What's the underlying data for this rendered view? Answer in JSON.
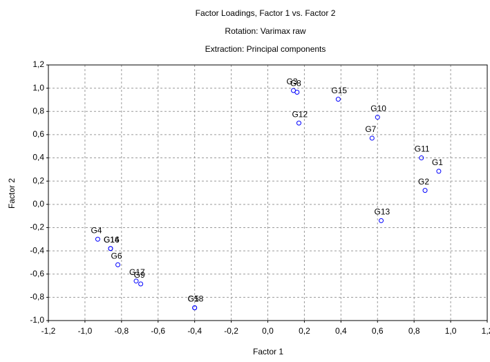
{
  "chart_data": {
    "type": "scatter",
    "title": "Factor Loadings, Factor 1 vs. Factor 2",
    "subtitle": "Rotation: Varimax raw",
    "subtitle2": "Extraction: Principal components",
    "xlabel": "Factor 1",
    "ylabel": "Factor 2",
    "labels": [
      "G1",
      "G2",
      "G3",
      "G4",
      "G5",
      "G6",
      "G7",
      "G8",
      "G9",
      "G10",
      "G11",
      "G12",
      "G13",
      "G14",
      "G15",
      "G16",
      "G17",
      "G18"
    ],
    "x": [
      0.935,
      0.86,
      0.14,
      -0.93,
      -0.4,
      -0.82,
      0.57,
      0.16,
      -0.695,
      0.6,
      0.84,
      0.17,
      0.62,
      -0.86,
      0.385,
      -0.86,
      -0.72,
      -0.4
    ],
    "values": [
      0.285,
      0.12,
      0.98,
      -0.3,
      -0.89,
      -0.52,
      0.57,
      0.965,
      -0.685,
      0.75,
      0.4,
      0.7,
      -0.14,
      -0.38,
      0.905,
      -0.38,
      -0.66,
      -0.89
    ],
    "color": "#0000ff",
    "xlim": [
      -1.2,
      1.2
    ],
    "xticks": [
      {
        "value": -1.2,
        "label": "-1,2"
      },
      {
        "value": -1.0,
        "label": "-1,0"
      },
      {
        "value": -0.8,
        "label": "-0,8"
      },
      {
        "value": -0.6,
        "label": "-0,6"
      },
      {
        "value": -0.4,
        "label": "-0,4"
      },
      {
        "value": -0.2,
        "label": "-0,2"
      },
      {
        "value": 0,
        "label": "0,0"
      },
      {
        "value": 0.2,
        "label": "0,2"
      },
      {
        "value": 0.4,
        "label": "0,4"
      },
      {
        "value": 0.6,
        "label": "0,6"
      },
      {
        "value": 0.8,
        "label": "0,8"
      },
      {
        "value": 1.0,
        "label": "1,0"
      },
      {
        "value": 1.2,
        "label": "1,2"
      }
    ],
    "ylim": [
      -1.0,
      1.2
    ],
    "yticks": [
      {
        "value": -1.0,
        "label": "-1,0"
      },
      {
        "value": -0.8,
        "label": "-0,8"
      },
      {
        "value": -0.6,
        "label": "-0,6"
      },
      {
        "value": -0.4,
        "label": "-0,4"
      },
      {
        "value": -0.2,
        "label": "-0,2"
      },
      {
        "value": 0,
        "label": "0,0"
      },
      {
        "value": 0.2,
        "label": "0,2"
      },
      {
        "value": 0.4,
        "label": "0,4"
      },
      {
        "value": 0.6,
        "label": "0,6"
      },
      {
        "value": 0.8,
        "label": "0,8"
      },
      {
        "value": 1.0,
        "label": "1,0"
      },
      {
        "value": 1.2,
        "label": "1,2"
      }
    ],
    "grid": true
  }
}
